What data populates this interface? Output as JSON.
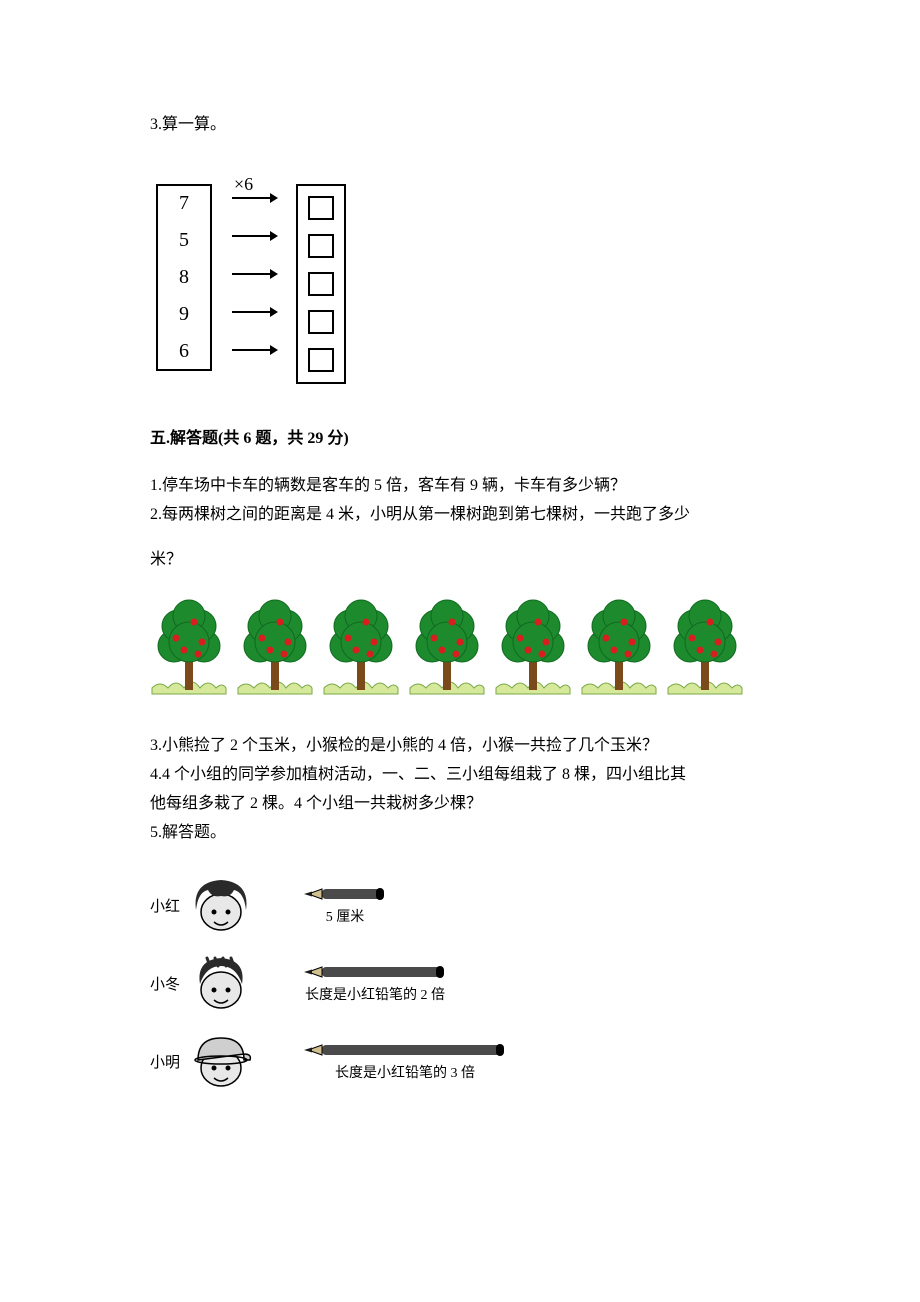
{
  "q3": {
    "label": "3.算一算。",
    "operator_label": "×6",
    "inputs": [
      "7",
      "5",
      "8",
      "9",
      "6"
    ],
    "figure": {
      "type": "diagram",
      "colors": {
        "border": "#000000",
        "background": "#ffffff",
        "text": "#000000"
      },
      "arrow": {
        "length": 44,
        "stroke_width": 2
      },
      "input_box": {
        "border_width": 2
      },
      "output_box": {
        "width": 22,
        "height": 20,
        "border_width": 2
      }
    }
  },
  "section5": {
    "title": "五.解答题(共 6 题，共 29 分)",
    "p1": "1.停车场中卡车的辆数是客车的 5 倍，客车有 9 辆，卡车有多少辆？",
    "p2_a": "2.每两棵树之间的距离是 4 米，小明从第一棵树跑到第七棵树，一共跑了多少",
    "p2_b": "米？",
    "trees": {
      "type": "infographic",
      "count": 7,
      "canopy_color": "#1e8a2e",
      "canopy_dark": "#0f6a1f",
      "fruit_color": "#d81e1e",
      "trunk_color": "#7a4a1a",
      "grass_color": "#d6e89a",
      "grass_dark": "#7aa84a",
      "tree_width": 78,
      "tree_height": 98
    },
    "p3": "3.小熊捡了 2 个玉米，小猴检的是小熊的 4 倍，小猴一共捡了几个玉米？",
    "p4_a": "4.4 个小组的同学参加植树活动，一、二、三小组每组栽了 8 棵，四小组比其",
    "p4_b": "他每组多栽了 2 棵。4 个小组一共栽树多少棵？",
    "p5": "5.解答题。",
    "pencils": {
      "type": "infographic",
      "pencil_body_color": "#4a4a4a",
      "pencil_tip_wood": "#d0c090",
      "pencil_tip_lead": "#1a1a1a",
      "face_fill": "#e8e8e8",
      "hair_fill": "#2a2a2a",
      "hat_fill": "#cfcfcf",
      "rows": [
        {
          "name": "小红",
          "len": 60,
          "label": "5 厘米",
          "head": "girl"
        },
        {
          "name": "小冬",
          "len": 120,
          "label": "长度是小红铅笔的 2 倍",
          "head": "boy"
        },
        {
          "name": "小明",
          "len": 180,
          "label": "长度是小红铅笔的 3 倍",
          "head": "cap"
        }
      ]
    }
  }
}
